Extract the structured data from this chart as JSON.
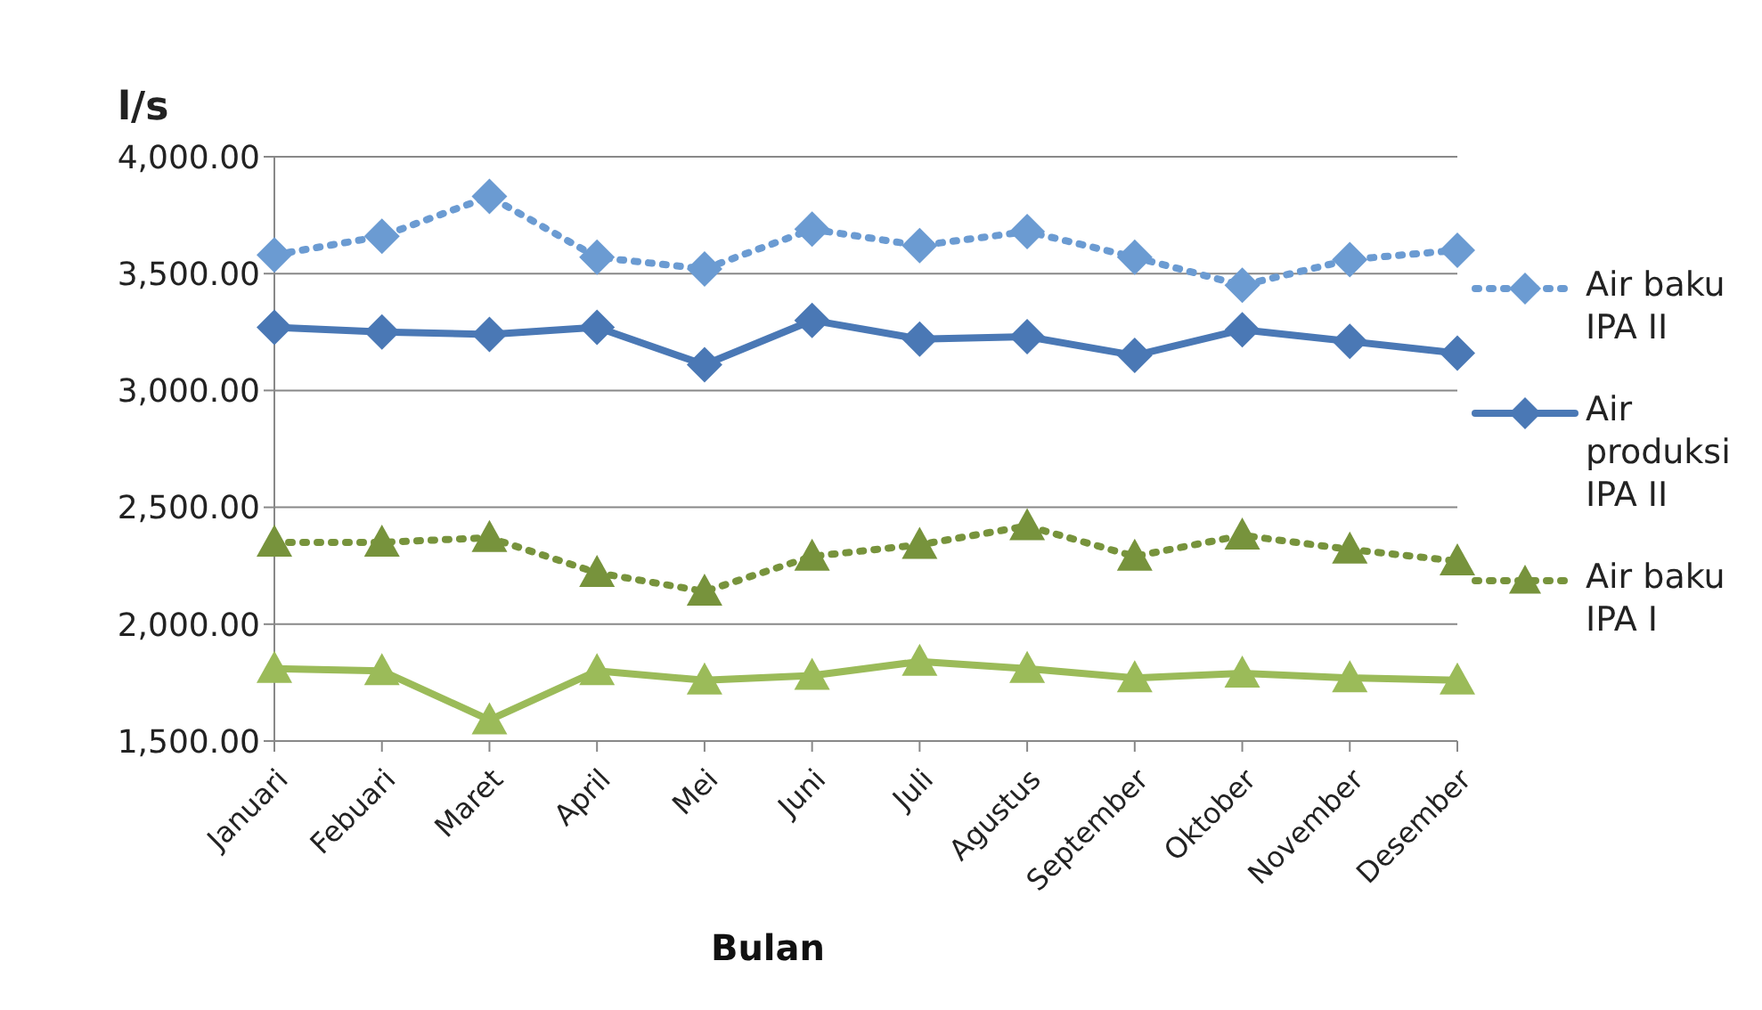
{
  "chart_data": {
    "type": "line",
    "xlabel": "Bulan",
    "ylabel": "l/s",
    "categories": [
      "Januari",
      "Febuari",
      "Maret",
      "April",
      "Mei",
      "Juni",
      "Juli",
      "Agustus",
      "September",
      "Oktober",
      "November",
      "Desember"
    ],
    "series": [
      {
        "name": "Air baku IPA II",
        "color": "#6b9bd2",
        "line_style": "dotted",
        "marker": "diamond",
        "values": [
          3580,
          3660,
          3830,
          3570,
          3520,
          3690,
          3620,
          3680,
          3570,
          3450,
          3560,
          3600
        ]
      },
      {
        "name": "Air produksi IPA II",
        "color": "#4a78b5",
        "line_style": "solid",
        "marker": "diamond",
        "values": [
          3270,
          3250,
          3240,
          3270,
          3110,
          3300,
          3220,
          3230,
          3150,
          3260,
          3210,
          3160
        ]
      },
      {
        "name": "Air baku IPA I",
        "color": "#77933c",
        "line_style": "dotted",
        "marker": "triangle",
        "values": [
          2350,
          2350,
          2370,
          2220,
          2140,
          2290,
          2340,
          2420,
          2290,
          2380,
          2320,
          2270
        ]
      },
      {
        "color": "#9bbb59",
        "line_style": "solid",
        "marker": "triangle",
        "values": [
          1810,
          1800,
          1590,
          1800,
          1760,
          1780,
          1840,
          1810,
          1770,
          1790,
          1770,
          1760
        ]
      }
    ],
    "ylim": [
      1500,
      4000
    ],
    "yticks": [
      {
        "value": 1500,
        "label": "1,500.00"
      },
      {
        "value": 2000,
        "label": "2,000.00"
      },
      {
        "value": 2500,
        "label": "2,500.00"
      },
      {
        "value": 3000,
        "label": "3,000.00"
      },
      {
        "value": 3500,
        "label": "3,500.00"
      },
      {
        "value": 4000,
        "label": "4,000.00"
      }
    ],
    "grid": "y",
    "legend": "right"
  }
}
